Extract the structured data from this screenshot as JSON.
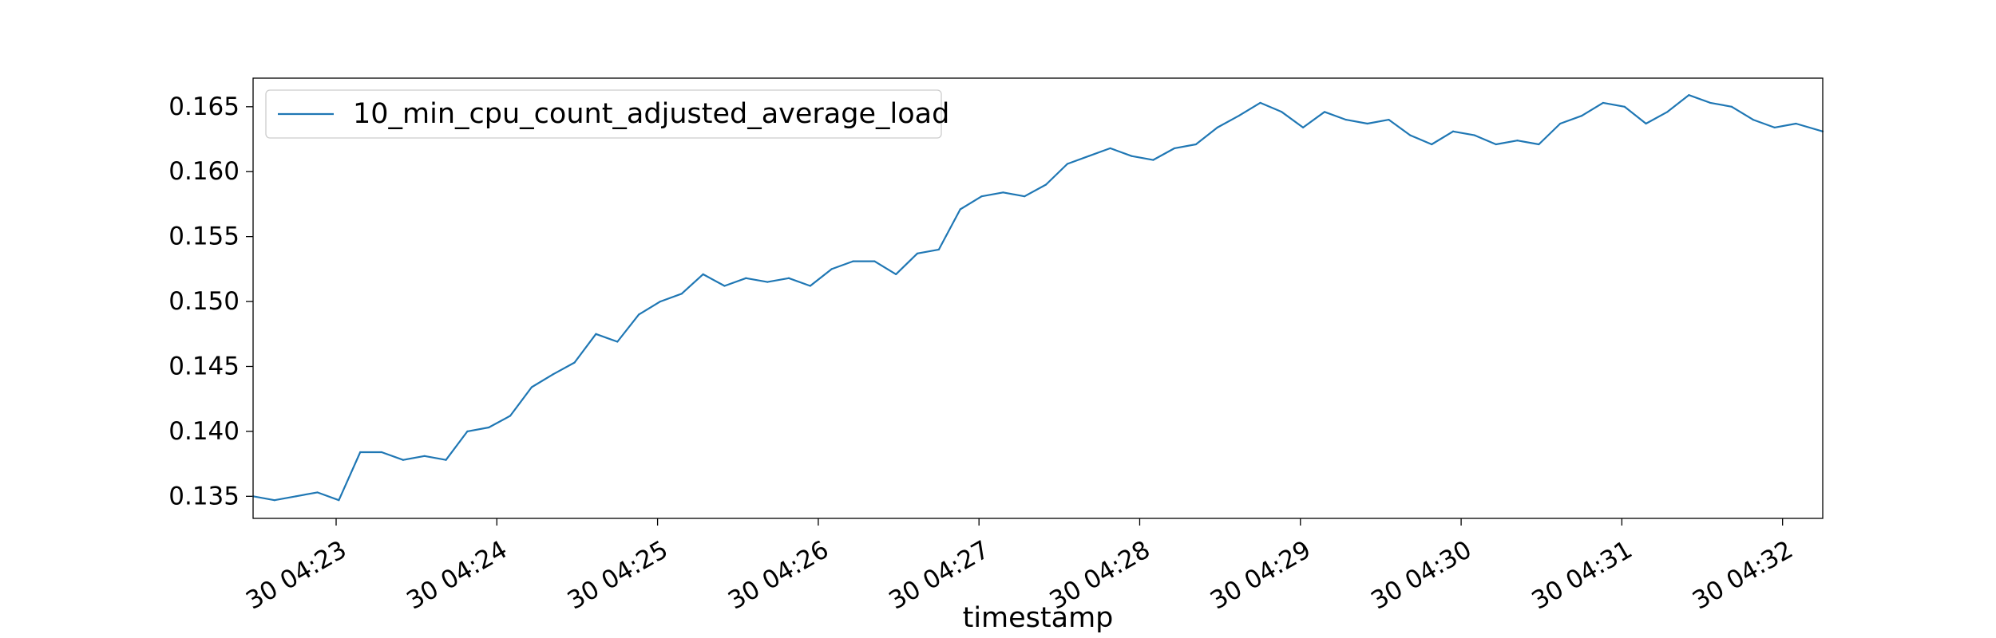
{
  "chart_data": {
    "type": "line",
    "title": "",
    "xlabel": "timestamp",
    "ylabel": "",
    "grid": false,
    "legend_position": "top-left",
    "xlim": [
      "30 04:22:29",
      "30 04:32:15"
    ],
    "ylim": [
      0.1333,
      0.1672
    ],
    "x_ticks": [
      {
        "x": "30 04:23:00",
        "label": "30 04:23"
      },
      {
        "x": "30 04:24:00",
        "label": "30 04:24"
      },
      {
        "x": "30 04:25:00",
        "label": "30 04:25"
      },
      {
        "x": "30 04:26:00",
        "label": "30 04:26"
      },
      {
        "x": "30 04:27:00",
        "label": "30 04:27"
      },
      {
        "x": "30 04:28:00",
        "label": "30 04:28"
      },
      {
        "x": "30 04:29:00",
        "label": "30 04:29"
      },
      {
        "x": "30 04:30:00",
        "label": "30 04:30"
      },
      {
        "x": "30 04:31:00",
        "label": "30 04:31"
      },
      {
        "x": "30 04:32:00",
        "label": "30 04:32"
      }
    ],
    "y_ticks": [
      {
        "value": 0.135,
        "label": "0.135"
      },
      {
        "value": 0.14,
        "label": "0.140"
      },
      {
        "value": 0.145,
        "label": "0.145"
      },
      {
        "value": 0.15,
        "label": "0.150"
      },
      {
        "value": 0.155,
        "label": "0.155"
      },
      {
        "value": 0.16,
        "label": "0.160"
      },
      {
        "value": 0.165,
        "label": "0.165"
      }
    ],
    "series": [
      {
        "name": "10_min_cpu_count_adjusted_average_load",
        "color": "#1f77b4",
        "x": [
          "30 04:22:29",
          "30 04:22:37",
          "30 04:22:45",
          "30 04:22:53",
          "30 04:23:01",
          "30 04:23:09",
          "30 04:23:17",
          "30 04:23:25",
          "30 04:23:33",
          "30 04:23:41",
          "30 04:23:49",
          "30 04:23:57",
          "30 04:24:05",
          "30 04:24:13",
          "30 04:24:21",
          "30 04:24:29",
          "30 04:24:37",
          "30 04:24:45",
          "30 04:24:53",
          "30 04:25:01",
          "30 04:25:09",
          "30 04:25:17",
          "30 04:25:25",
          "30 04:25:33",
          "30 04:25:41",
          "30 04:25:49",
          "30 04:25:57",
          "30 04:26:05",
          "30 04:26:13",
          "30 04:26:21",
          "30 04:26:29",
          "30 04:26:37",
          "30 04:26:45",
          "30 04:26:53",
          "30 04:27:01",
          "30 04:27:09",
          "30 04:27:17",
          "30 04:27:25",
          "30 04:27:33",
          "30 04:27:41",
          "30 04:27:49",
          "30 04:27:57",
          "30 04:28:05",
          "30 04:28:13",
          "30 04:28:21",
          "30 04:28:29",
          "30 04:28:37",
          "30 04:28:45",
          "30 04:28:53",
          "30 04:29:01",
          "30 04:29:09",
          "30 04:29:17",
          "30 04:29:25",
          "30 04:29:33",
          "30 04:29:41",
          "30 04:29:49",
          "30 04:29:57",
          "30 04:30:05",
          "30 04:30:13",
          "30 04:30:21",
          "30 04:30:29",
          "30 04:30:37",
          "30 04:30:45",
          "30 04:30:53",
          "30 04:31:01",
          "30 04:31:09",
          "30 04:31:17",
          "30 04:31:25",
          "30 04:31:33",
          "30 04:31:41",
          "30 04:31:49",
          "30 04:31:57",
          "30 04:32:05",
          "30 04:32:15"
        ],
        "y": [
          0.135,
          0.1347,
          0.135,
          0.1353,
          0.1347,
          0.1384,
          0.1384,
          0.1378,
          0.1381,
          0.1378,
          0.14,
          0.1403,
          0.1412,
          0.1434,
          0.1444,
          0.1453,
          0.1475,
          0.1469,
          0.149,
          0.15,
          0.1506,
          0.1521,
          0.1512,
          0.1518,
          0.1515,
          0.1518,
          0.1512,
          0.1525,
          0.1531,
          0.1531,
          0.1521,
          0.1537,
          0.154,
          0.1571,
          0.1581,
          0.1584,
          0.1581,
          0.159,
          0.1606,
          0.1612,
          0.1618,
          0.1612,
          0.1609,
          0.1618,
          0.1621,
          0.1634,
          0.1643,
          0.1653,
          0.1646,
          0.1634,
          0.1646,
          0.164,
          0.1637,
          0.164,
          0.1628,
          0.1621,
          0.1631,
          0.1628,
          0.1621,
          0.1624,
          0.1621,
          0.1637,
          0.1643,
          0.1653,
          0.165,
          0.1637,
          0.1646,
          0.1659,
          0.1653,
          0.165,
          0.164,
          0.1634,
          0.1637,
          0.1631
        ]
      }
    ]
  }
}
